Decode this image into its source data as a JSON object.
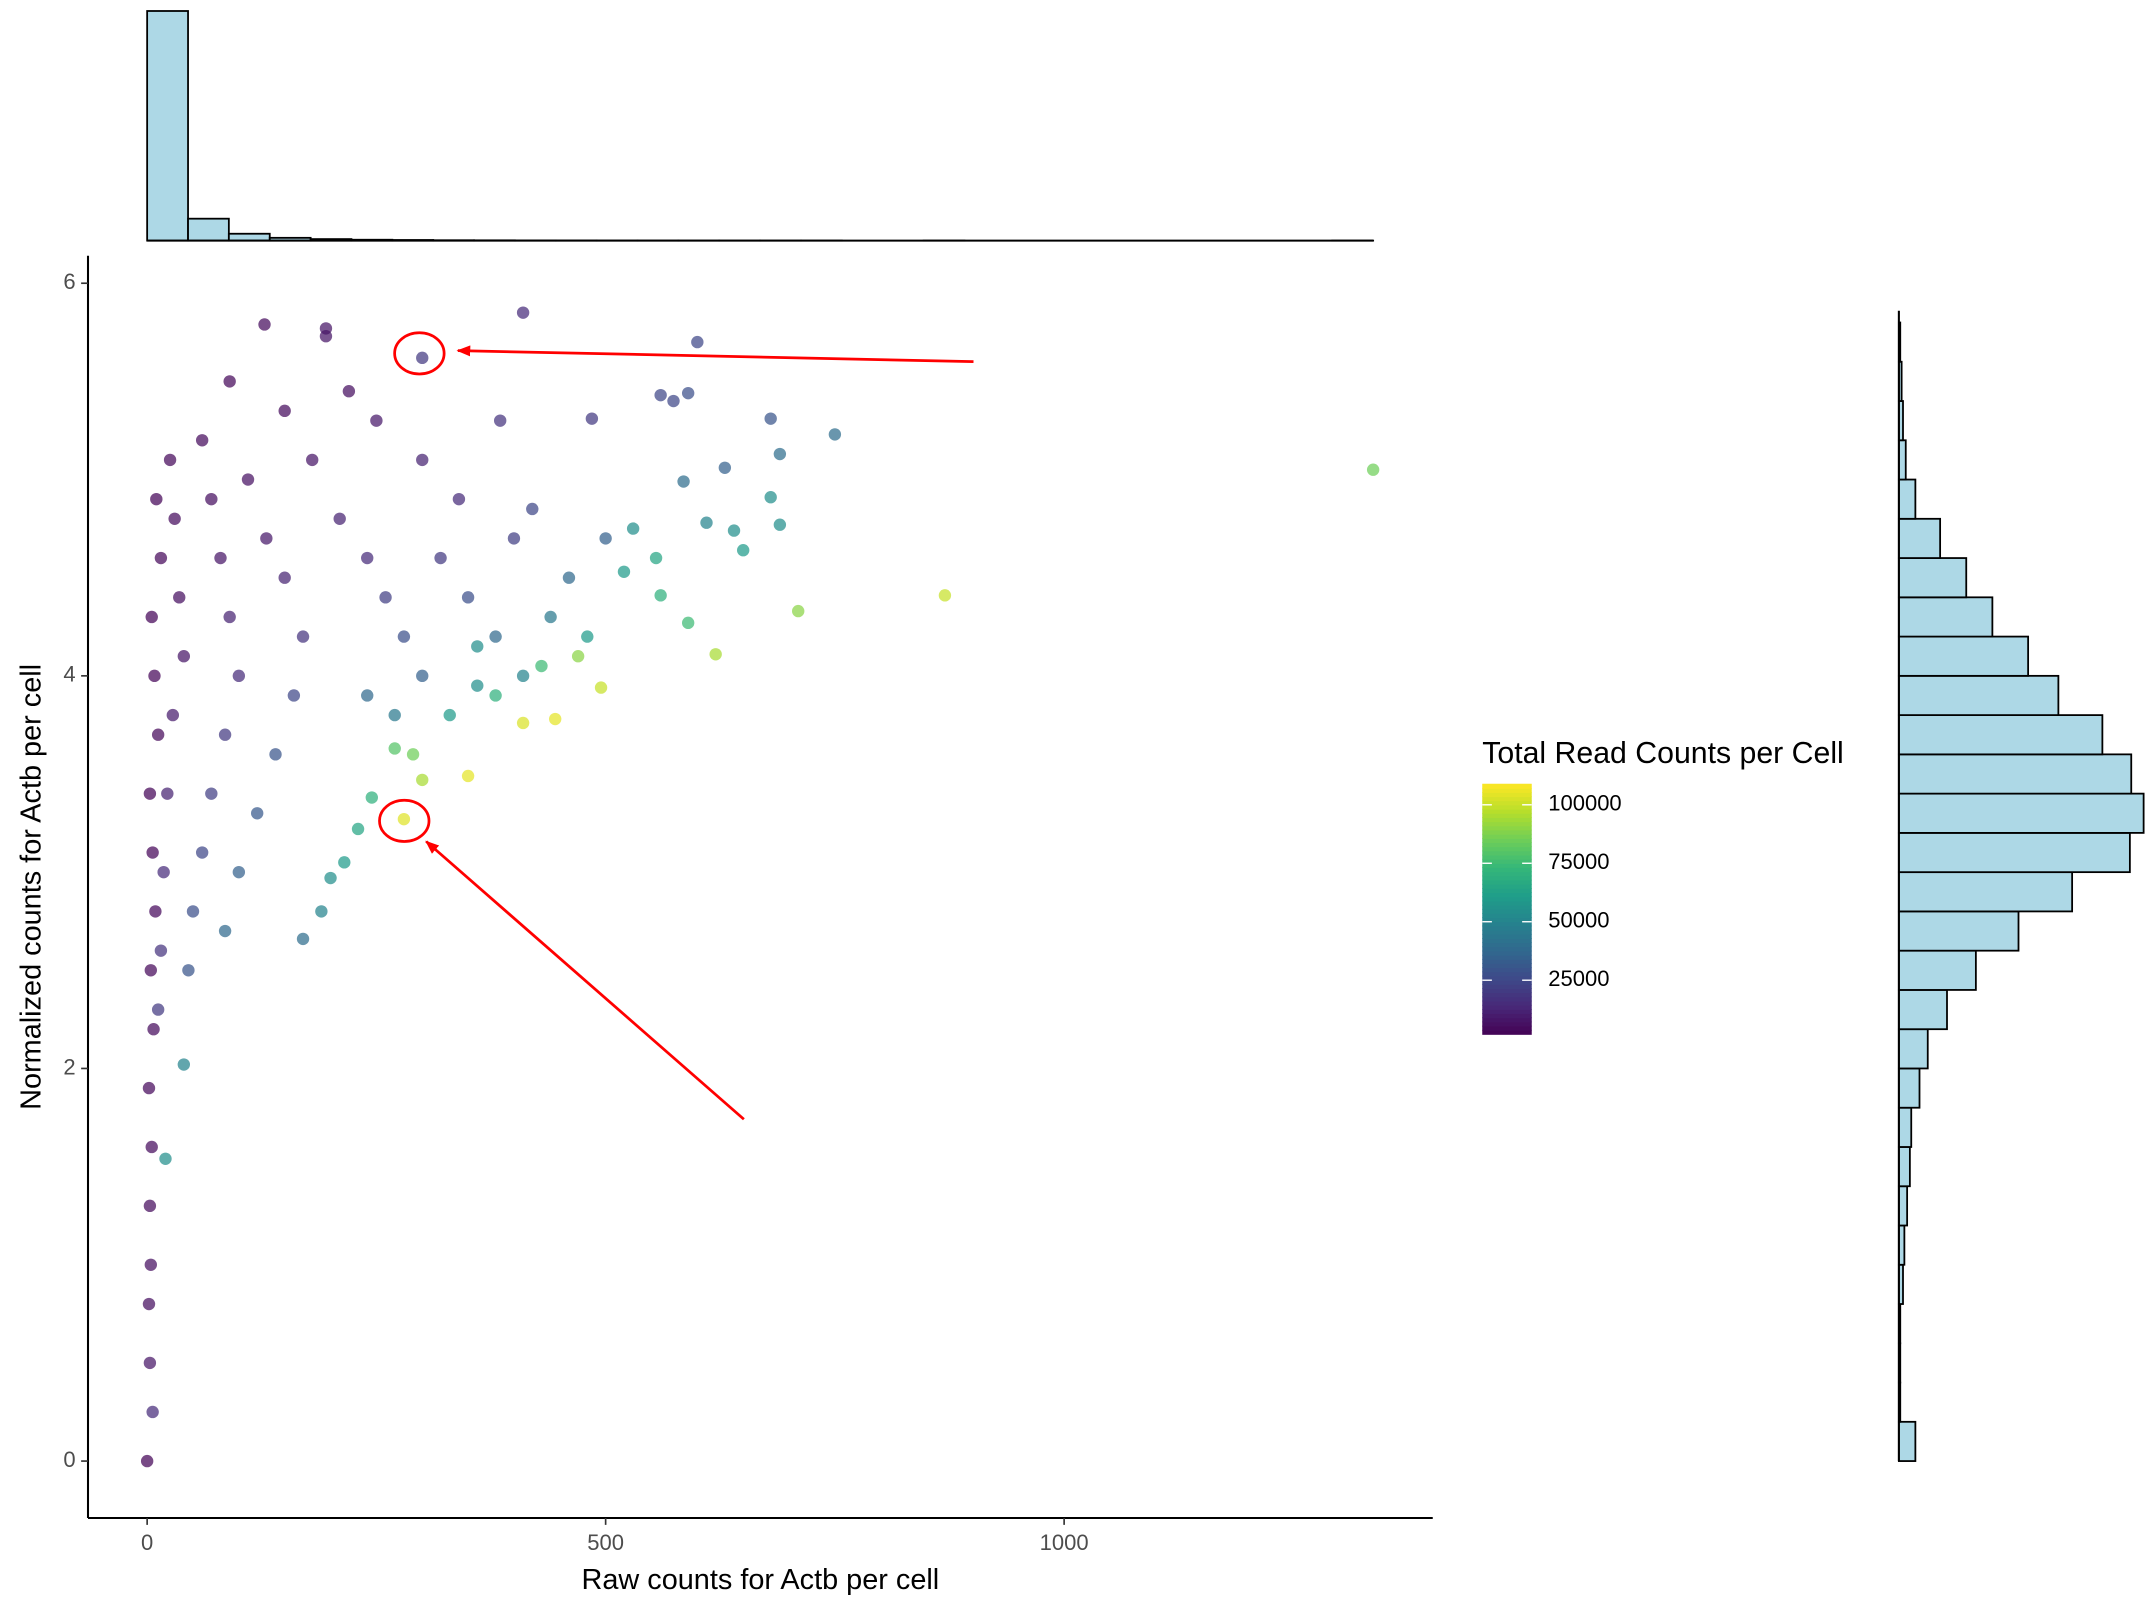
{
  "chart_data": [
    {
      "type": "scatter",
      "x_label": "Raw counts for Actb per cell",
      "y_label": "Normalized counts for Actb per cell",
      "xlim": [
        -64.5,
        1402
      ],
      "xticks": [
        0,
        500,
        1000
      ],
      "ylim": [
        -0.29,
        6.14
      ],
      "yticks": [
        0,
        2,
        4,
        6
      ],
      "colormap": "viridis",
      "colorbar": {
        "title": "Total Read Counts per Cell",
        "lim": [
          2000,
          109000
        ],
        "ticks": [
          25000,
          50000,
          75000,
          100000
        ]
      },
      "x": [
        410,
        195,
        128,
        195,
        600,
        300,
        1337,
        870,
        710,
        620,
        560,
        590,
        574,
        750,
        680,
        690,
        485,
        385,
        690,
        680,
        650,
        640,
        610,
        630,
        585,
        530,
        520,
        560,
        590,
        555,
        470,
        495,
        445,
        410,
        350,
        280,
        300,
        270,
        290,
        245,
        230,
        215,
        200,
        190,
        170,
        40,
        20,
        6,
        0,
        10,
        15,
        5,
        8,
        12,
        3,
        6,
        9,
        4,
        7,
        2,
        5,
        3,
        4,
        2,
        3,
        25,
        30,
        35,
        40,
        28,
        22,
        18,
        15,
        12,
        60,
        70,
        80,
        90,
        100,
        85,
        70,
        60,
        50,
        45,
        110,
        130,
        150,
        170,
        160,
        140,
        120,
        100,
        85,
        180,
        210,
        240,
        260,
        280,
        300,
        270,
        240,
        320,
        350,
        380,
        410,
        360,
        440,
        460,
        400,
        340,
        300,
        250,
        220,
        150,
        90,
        500,
        420,
        480,
        380,
        330,
        430,
        360
      ],
      "values": [
        5.85,
        5.77,
        5.79,
        5.73,
        5.7,
        5.62,
        5.05,
        4.41,
        4.33,
        4.11,
        5.43,
        5.44,
        5.4,
        5.23,
        5.31,
        5.13,
        5.31,
        5.3,
        4.77,
        4.91,
        4.64,
        4.74,
        4.78,
        5.06,
        4.99,
        4.75,
        4.53,
        4.41,
        4.27,
        4.6,
        4.1,
        3.94,
        3.78,
        3.76,
        3.49,
        3.27,
        3.47,
        3.63,
        3.6,
        3.38,
        3.22,
        3.05,
        2.97,
        2.8,
        2.66,
        2.02,
        1.54,
        0.25,
        0,
        4.9,
        4.6,
        4.3,
        4.0,
        3.7,
        3.4,
        3.1,
        2.8,
        2.5,
        2.2,
        1.9,
        1.6,
        1.3,
        1.0,
        0.8,
        0.5,
        5.1,
        4.8,
        4.4,
        4.1,
        3.8,
        3.4,
        3.0,
        2.6,
        2.3,
        5.2,
        4.9,
        4.6,
        4.3,
        4.0,
        3.7,
        3.4,
        3.1,
        2.8,
        2.5,
        5.0,
        4.7,
        4.5,
        4.2,
        3.9,
        3.6,
        3.3,
        3.0,
        2.7,
        5.1,
        4.8,
        4.6,
        4.4,
        4.2,
        4.0,
        3.8,
        3.9,
        4.6,
        4.4,
        4.2,
        4.0,
        3.95,
        4.3,
        4.5,
        4.7,
        4.9,
        5.1,
        5.3,
        5.45,
        5.35,
        5.5,
        4.7,
        4.85,
        4.2,
        3.9,
        3.8,
        4.05,
        4.15
      ],
      "color_values": [
        15000,
        8000,
        5000,
        8000,
        25000,
        20000,
        85000,
        100000,
        90000,
        95000,
        25000,
        28000,
        25000,
        40000,
        30000,
        40000,
        20000,
        18000,
        55000,
        55000,
        60000,
        55000,
        50000,
        35000,
        40000,
        55000,
        60000,
        70000,
        75000,
        65000,
        90000,
        100000,
        105000,
        103000,
        105000,
        104000,
        95000,
        80000,
        85000,
        70000,
        65000,
        60000,
        55000,
        50000,
        40000,
        50000,
        55000,
        15000,
        3000,
        3000,
        4000,
        3000,
        3500,
        4000,
        3000,
        3500,
        4500,
        4000,
        5000,
        4500,
        5000,
        5000,
        6000,
        6000,
        8000,
        4000,
        5000,
        6000,
        8000,
        10000,
        12000,
        15000,
        18000,
        20000,
        5000,
        6000,
        8000,
        12000,
        15000,
        20000,
        22000,
        25000,
        28000,
        30000,
        7000,
        9000,
        12000,
        18000,
        25000,
        30000,
        32000,
        35000,
        38000,
        8000,
        12000,
        15000,
        22000,
        28000,
        35000,
        45000,
        38000,
        20000,
        28000,
        38000,
        50000,
        55000,
        45000,
        38000,
        22000,
        15000,
        12000,
        9000,
        6000,
        5000,
        4000,
        35000,
        25000,
        60000,
        70000,
        60000,
        75000,
        55000
      ]
    },
    {
      "type": "histogram",
      "orientation": "vertical",
      "color": "#add8e6",
      "bins": [
        0,
        44.6,
        89.1,
        133.7,
        178.3,
        222.8,
        267.4,
        312,
        356.5,
        401.1,
        445.7,
        490.2,
        534.8,
        579.4,
        623.9,
        668.5,
        713.1,
        757.6,
        802.2,
        846.8,
        891.3,
        935.9,
        980.5,
        1025,
        1069.6,
        1114.2,
        1158.7,
        1203.3,
        1247.9,
        1292.4,
        1337
      ],
      "values": [
        9000,
        860,
        270,
        110,
        60,
        35,
        25,
        15,
        12,
        8,
        6,
        4,
        3,
        2,
        1,
        1,
        1,
        0,
        0,
        1,
        0,
        0,
        0,
        0,
        0,
        0,
        0,
        0,
        0,
        1
      ],
      "ylim": [
        0,
        9000
      ]
    },
    {
      "type": "histogram",
      "orientation": "horizontal",
      "color": "#add8e6",
      "bins": [
        0,
        0.2,
        0.4,
        0.6,
        0.8,
        1.0,
        1.2,
        1.4,
        1.6,
        1.8,
        2.0,
        2.2,
        2.4,
        2.6,
        2.8,
        3.0,
        3.2,
        3.4,
        3.6,
        3.8,
        4.0,
        4.2,
        4.4,
        4.6,
        4.8,
        5.0,
        5.2,
        5.4,
        5.6,
        5.8,
        6.0
      ],
      "values": [
        12,
        1,
        1,
        1,
        3,
        4,
        6,
        8,
        9,
        15,
        21,
        35,
        56,
        87,
        126,
        168,
        178,
        169,
        148,
        116,
        94,
        68,
        49,
        30,
        12,
        5,
        3,
        2,
        1,
        0
      ],
      "xlim": [
        0,
        178
      ]
    }
  ]
}
